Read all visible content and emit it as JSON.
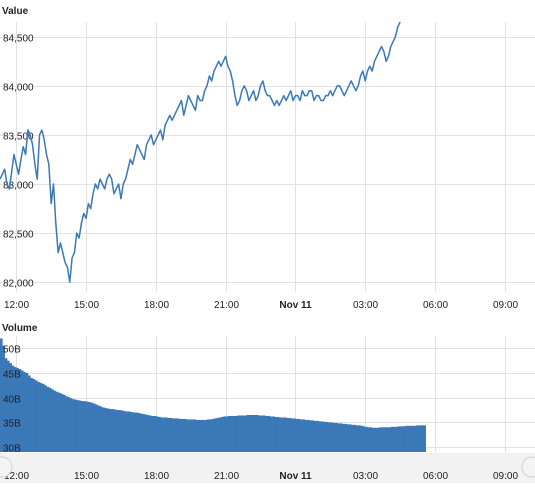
{
  "colors": {
    "line": "#3a78b8",
    "bar_fill": "#3a78b8",
    "grid": "#e2e2e2"
  },
  "icons": {
    "scroll_left": "circle-left-icon",
    "scroll_right": "circle-right-icon"
  },
  "chart_data": [
    {
      "type": "line",
      "title": "Value",
      "ylim": [
        81900,
        84650
      ],
      "y_ticks": [
        82000,
        82500,
        83000,
        83500,
        84000,
        84500
      ],
      "y_tick_labels": [
        "82,000",
        "82,500",
        "83,000",
        "83,500",
        "84,000",
        "84,500"
      ],
      "x_ticks": [
        0,
        3,
        6,
        9,
        12,
        15,
        18,
        21
      ],
      "x_tick_labels": [
        "12:00",
        "15:00",
        "18:00",
        "21:00",
        "Nov 11",
        "03:00",
        "06:00",
        "09:00"
      ],
      "x_tick_bold": [
        false,
        false,
        false,
        false,
        true,
        false,
        false,
        false
      ],
      "x_range_hours": [
        -0.7,
        22.3
      ],
      "x_step_hours": 0.1,
      "grid": true,
      "values": [
        83050,
        83100,
        83150,
        83000,
        82950,
        83120,
        83300,
        83200,
        83100,
        83250,
        83380,
        83300,
        83550,
        83500,
        83400,
        83200,
        83050,
        83500,
        83550,
        83450,
        83300,
        83200,
        82800,
        83000,
        82600,
        82300,
        82400,
        82300,
        82200,
        82150,
        82000,
        82250,
        82300,
        82500,
        82450,
        82600,
        82700,
        82650,
        82800,
        82750,
        82900,
        83000,
        82950,
        83050,
        83000,
        82950,
        83050,
        83100,
        83050,
        82900,
        82950,
        83000,
        82850,
        83000,
        83050,
        83150,
        83250,
        83200,
        83300,
        83400,
        83350,
        83300,
        83250,
        83400,
        83450,
        83500,
        83400,
        83450,
        83500,
        83550,
        83450,
        83600,
        83650,
        83700,
        83650,
        83700,
        83750,
        83800,
        83850,
        83700,
        83800,
        83900,
        83850,
        83800,
        83750,
        83900,
        83850,
        83850,
        83950,
        84000,
        84100,
        84050,
        84150,
        84200,
        84250,
        84200,
        84250,
        84300,
        84200,
        84150,
        84050,
        83900,
        83800,
        83850,
        83950,
        84000,
        83950,
        83850,
        83900,
        83950,
        83850,
        83900,
        84000,
        84050,
        83950,
        83900,
        83900,
        83850,
        83800,
        83850,
        83800,
        83850,
        83900,
        83850,
        83900,
        83950,
        83850,
        83900,
        83900,
        83850,
        83950,
        83900,
        83900,
        83950,
        83950,
        83850,
        83900,
        83900,
        83850,
        83850,
        83900,
        83900,
        83950,
        83900,
        83950,
        84000,
        84000,
        83950,
        83900,
        83950,
        84000,
        84050,
        84000,
        83950,
        84000,
        84100,
        84150,
        84050,
        84150,
        84200,
        84150,
        84250,
        84300,
        84350,
        84400,
        84350,
        84250,
        84300,
        84400,
        84450,
        84500,
        84600,
        84650
      ]
    },
    {
      "type": "bar",
      "title": "Volume",
      "ylim": [
        29000,
        52500
      ],
      "y_ticks": [
        30000,
        35000,
        40000,
        45000,
        50000
      ],
      "y_tick_labels": [
        "30B",
        "35B",
        "40B",
        "45B",
        "50B"
      ],
      "x_ticks": [
        0,
        3,
        6,
        9,
        12,
        15,
        18,
        21
      ],
      "x_tick_labels": [
        "12:00",
        "15:00",
        "18:00",
        "21:00",
        "Nov 11",
        "03:00",
        "06:00",
        "09:00"
      ],
      "x_tick_bold": [
        false,
        false,
        false,
        false,
        true,
        false,
        false,
        false
      ],
      "x_range_hours": [
        -0.7,
        22.3
      ],
      "x_step_hours": 0.1,
      "grid": true,
      "values": [
        52000,
        50500,
        48000,
        47500,
        47000,
        46500,
        46200,
        46000,
        45800,
        45500,
        45200,
        45000,
        44500,
        44000,
        43800,
        43500,
        43200,
        43000,
        42800,
        42500,
        42200,
        42000,
        41700,
        41400,
        41200,
        41000,
        40800,
        40600,
        40300,
        40100,
        39900,
        39700,
        39600,
        39500,
        39400,
        39300,
        39300,
        39200,
        39100,
        39000,
        38800,
        38600,
        38400,
        38200,
        38000,
        37900,
        37800,
        37700,
        37700,
        37600,
        37500,
        37500,
        37400,
        37300,
        37200,
        37200,
        37100,
        37000,
        37000,
        36900,
        36800,
        36700,
        36600,
        36500,
        36400,
        36300,
        36300,
        36200,
        36100,
        36000,
        36000,
        36000,
        35900,
        35900,
        35800,
        35800,
        35800,
        35700,
        35700,
        35700,
        35600,
        35600,
        35600,
        35600,
        35500,
        35500,
        35500,
        35500,
        35500,
        35600,
        35600,
        35700,
        35800,
        35900,
        36000,
        36100,
        36200,
        36200,
        36300,
        36300,
        36300,
        36300,
        36400,
        36400,
        36400,
        36400,
        36500,
        36500,
        36500,
        36500,
        36500,
        36400,
        36400,
        36400,
        36300,
        36300,
        36200,
        36200,
        36100,
        36100,
        36000,
        36000,
        36000,
        35900,
        35900,
        35800,
        35800,
        35700,
        35700,
        35600,
        35600,
        35500,
        35500,
        35400,
        35400,
        35300,
        35300,
        35200,
        35200,
        35100,
        35100,
        35000,
        35000,
        34900,
        34900,
        34800,
        34800,
        34700,
        34700,
        34600,
        34600,
        34500,
        34500,
        34400,
        34400,
        34300,
        34200,
        34100,
        34000,
        34000,
        33900,
        33900,
        33900,
        34000,
        34000,
        34000,
        34000,
        34000,
        34100,
        34100,
        34100,
        34200,
        34200,
        34200,
        34300,
        34300,
        34300,
        34300,
        34300,
        34400,
        34400,
        34400,
        34400
      ]
    }
  ]
}
